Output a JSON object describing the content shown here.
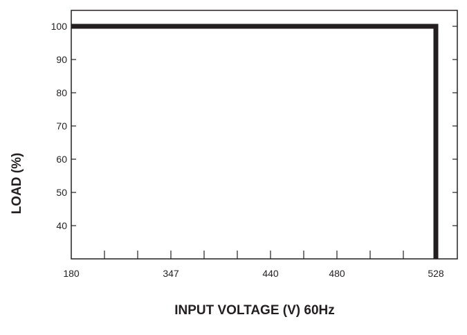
{
  "chart_data": {
    "type": "line",
    "title": "",
    "xlabel": "INPUT VOLTAGE (V) 60Hz",
    "ylabel": "LOAD (%)",
    "x_tick_labels": [
      "180",
      "347",
      "440",
      "480",
      "528"
    ],
    "y_tick_labels": [
      "100",
      "90",
      "80",
      "70",
      "60",
      "50",
      "40"
    ],
    "ylim": [
      30,
      105
    ],
    "grid": false,
    "series": [
      {
        "points": [
          {
            "x": 180,
            "y": 100
          },
          {
            "x": 528,
            "y": 100
          },
          {
            "x": 528,
            "y": 30
          }
        ],
        "color": "#231f20"
      }
    ]
  }
}
